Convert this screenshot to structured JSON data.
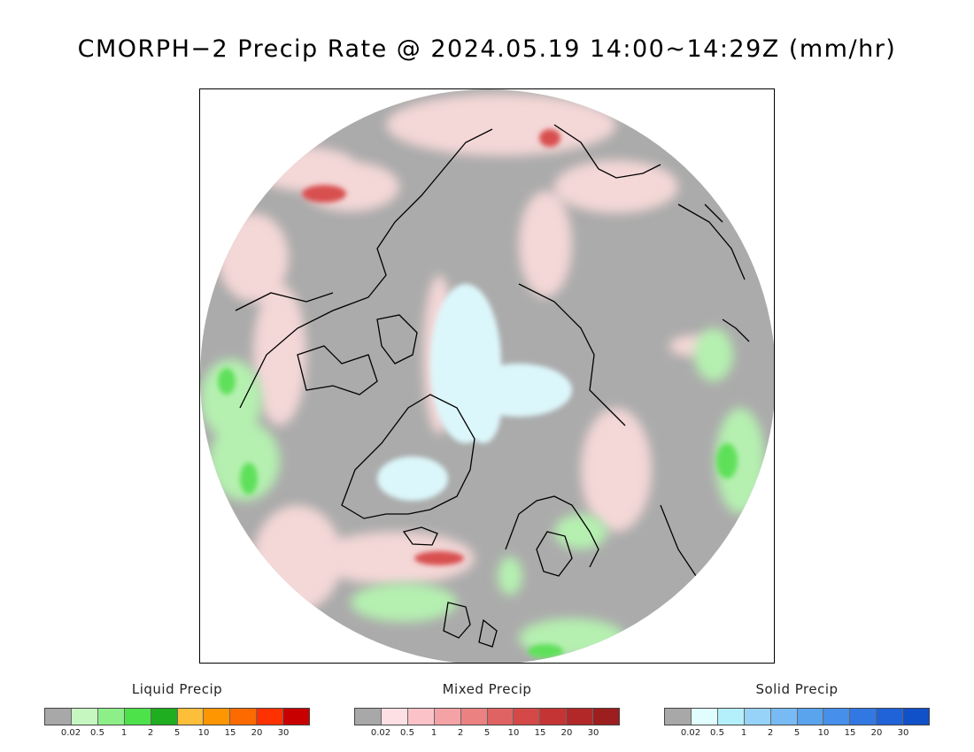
{
  "title": "CMORPH−2 Precip Rate @ 2024.05.19 14:00~14:29Z (mm/hr)",
  "map": {
    "background_color": "#ababab",
    "coastline_color": "#000000",
    "overlay_colors": {
      "liquid_light": "#b5f0b0",
      "liquid_mid": "#5fe05a",
      "mixed_light": "#fcdcdc",
      "mixed_mid": "#f4a6a6",
      "mixed_dark": "#d85050",
      "solid_light": "#dcf7fb"
    }
  },
  "legends": [
    {
      "title": "Liquid Precip",
      "colors": [
        "#a8a8a8",
        "#c6f7c0",
        "#8def88",
        "#4ee24a",
        "#1fae1f",
        "#fdbe3a",
        "#fd9600",
        "#fd6a00",
        "#fd3200",
        "#c80000"
      ],
      "ticks": [
        "0.02",
        "0.5",
        "1",
        "2",
        "5",
        "10",
        "15",
        "20",
        "30"
      ]
    },
    {
      "title": "Mixed Precip",
      "colors": [
        "#a8a8a8",
        "#fde0e4",
        "#fbc3c8",
        "#f3a2a6",
        "#eb8181",
        "#e06363",
        "#d44848",
        "#c53434",
        "#b22828",
        "#9c1e1e"
      ],
      "ticks": [
        "0.02",
        "0.5",
        "1",
        "2",
        "5",
        "10",
        "15",
        "20",
        "30"
      ]
    },
    {
      "title": "Solid Precip",
      "colors": [
        "#a8a8a8",
        "#e0fefe",
        "#b4f0fb",
        "#97d3f8",
        "#78bbf4",
        "#5aa4ee",
        "#468fea",
        "#3278e2",
        "#2062d8",
        "#1050c8"
      ],
      "ticks": [
        "0.02",
        "0.5",
        "1",
        "2",
        "5",
        "10",
        "15",
        "20",
        "30"
      ]
    }
  ]
}
